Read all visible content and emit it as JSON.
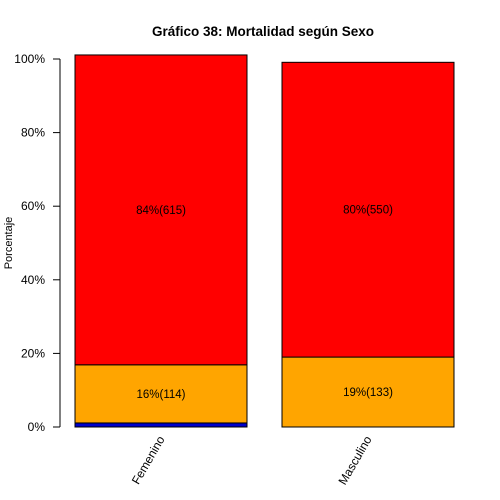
{
  "chart_data": {
    "type": "bar",
    "stacked": true,
    "title": "Gráfico 38: Mortalidad según Sexo",
    "ylabel": "Porcentaje",
    "xlabel": "",
    "ylim": [
      0,
      100
    ],
    "yticks": [
      0,
      20,
      40,
      60,
      80,
      100
    ],
    "ytick_labels": [
      "0%",
      "20%",
      "40%",
      "60%",
      "80%",
      "100%"
    ],
    "categories": [
      "Femenino",
      "Masculino"
    ],
    "series": [
      {
        "color": "#0000cc",
        "values": [
          1.1,
          0
        ],
        "labels": [
          "",
          ""
        ]
      },
      {
        "color": "#ffa500",
        "values": [
          15.8,
          19.0
        ],
        "labels": [
          "16%(114)",
          "19%(133)"
        ]
      },
      {
        "color": "#ff0000",
        "values": [
          84.2,
          80.1
        ],
        "labels": [
          "84%(615)",
          "80%(550)"
        ]
      }
    ]
  }
}
